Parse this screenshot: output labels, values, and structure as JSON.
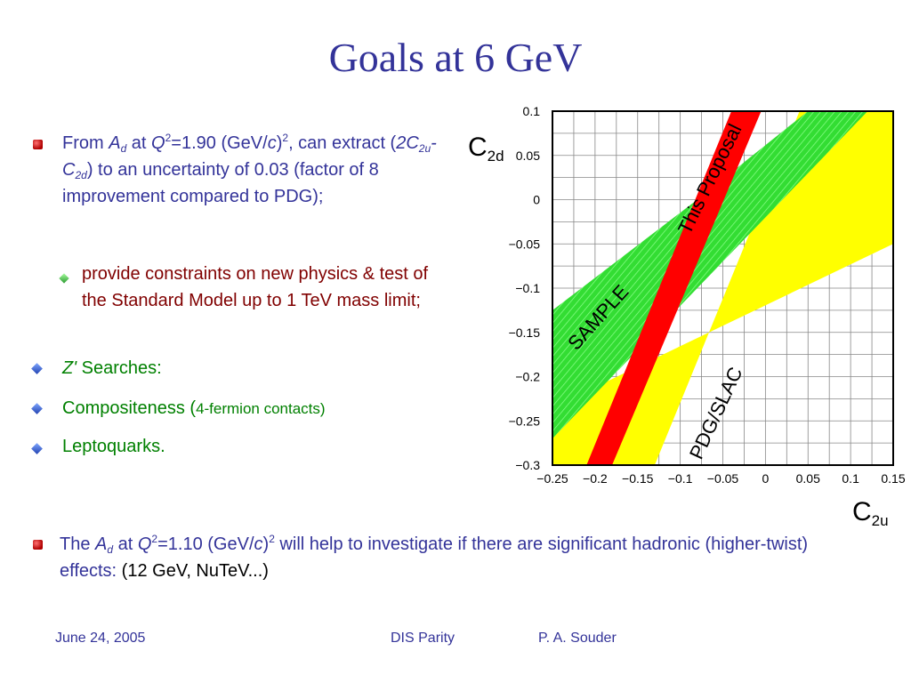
{
  "title": "Goals at 6 GeV",
  "bullets": {
    "b1": {
      "from": "From ",
      "A": "A",
      "d": "d",
      "at": " at ",
      "Q": "Q",
      "two": "2",
      "eq": "=1.90 (GeV/",
      "c": "c",
      "close": ")",
      "comma": ", can extract (",
      "twoC": "2C",
      "twou": "2u",
      "dash": "-C",
      "twod": "2d",
      "rest": ") to an uncertainty of 0.03 (factor of 8 improvement compared to PDG);"
    },
    "sub1": "provide constraints on new physics & test of the Standard Model up to 1 TeV mass limit;",
    "zprime": {
      "z": "Z'",
      "rest": " Searches:"
    },
    "compositeness": {
      "main": "Compositeness (",
      "small": "4-fermion contacts)"
    },
    "leptoquarks": "Leptoquarks."
  },
  "bottom": {
    "the": "The ",
    "A": "A",
    "d": "d",
    "at": " at ",
    "Q": "Q",
    "two": "2",
    "eq": "=1.10 (GeV/",
    "c": "c",
    "close": ")",
    "rest1": " will help to investigate if there are significant hadronic (higher-twist) effects: ",
    "black": "(12 GeV, NuTeV...)"
  },
  "footer": {
    "date": "June 24, 2005",
    "topic": "DIS Parity",
    "author": "P. A. Souder"
  },
  "colors": {
    "title": "#333399",
    "yellow": "#ffff00",
    "green": "#22dd22",
    "red": "#ff0000"
  },
  "chart_data": {
    "type": "area",
    "xlabel": "C2u",
    "ylabel": "C2d",
    "xlim": [
      -0.25,
      0.15
    ],
    "ylim": [
      -0.3,
      0.1
    ],
    "x_ticks": [
      "-0.25",
      "-0.2",
      "-0.15",
      "-0.1",
      "-0.05",
      "0",
      "0.05",
      "0.1",
      "0.15"
    ],
    "y_ticks": [
      "0.1",
      "0.05",
      "0",
      "-0.05",
      "-0.1",
      "-0.15",
      "-0.2",
      "-0.25",
      "-0.3"
    ],
    "grid": true,
    "bands": [
      {
        "name": "PDG/SLAC",
        "color": "#ffff00",
        "polygon": [
          [
            -0.25,
            -0.235
          ],
          [
            -0.25,
            -0.3
          ],
          [
            -0.13,
            -0.3
          ],
          [
            0.04,
            0.1
          ],
          [
            0.09,
            0.1
          ],
          [
            0.15,
            0.1
          ],
          [
            0.15,
            -0.05
          ]
        ]
      },
      {
        "name": "SAMPLE",
        "color": "#22dd22",
        "polygon": [
          [
            -0.25,
            -0.27
          ],
          [
            -0.25,
            -0.125
          ],
          [
            -0.08,
            0.0
          ],
          [
            0.05,
            0.1
          ],
          [
            0.12,
            0.1
          ]
        ]
      },
      {
        "name": "This Proposal",
        "color": "#ff0000",
        "polygon": [
          [
            -0.21,
            -0.3
          ],
          [
            -0.18,
            -0.3
          ],
          [
            -0.005,
            0.1
          ],
          [
            -0.04,
            0.1
          ]
        ]
      }
    ]
  }
}
